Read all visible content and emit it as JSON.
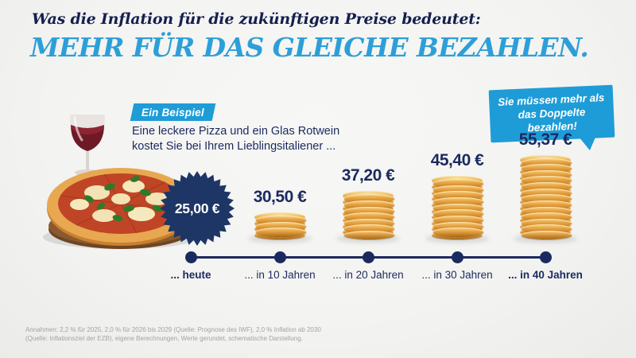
{
  "header": {
    "kicker": "Was die Inflation für die zukünftigen Preise bedeutet:",
    "title": "MEHR FÜR DAS GLEICHE BEZAHLEN."
  },
  "example": {
    "badge_label": "Ein Beispiel",
    "text_line1": "Eine leckere Pizza und ein Glas Rotwein",
    "text_line2": "kostet Sie bei Ihrem Lieblingsitaliener ..."
  },
  "callout": {
    "text_line1": "Sie müssen mehr als",
    "text_line2": "das Doppelte bezahlen!"
  },
  "chart_data": {
    "type": "bar",
    "subtype": "pictograph-coin-stacks",
    "title": "",
    "categories": [
      "... heute",
      "... in 10 Jahren",
      "... in 20 Jahren",
      "... in 30 Jahren",
      "... in 40 Jahren"
    ],
    "values": [
      25.0,
      30.5,
      37.2,
      45.4,
      55.37
    ],
    "value_labels": [
      "25,00 €",
      "30,50 €",
      "37,20 €",
      "45,40 €",
      "55,37 €"
    ],
    "unit": "€",
    "coin_counts": [
      0,
      7,
      14,
      19,
      26
    ],
    "grid": false,
    "legend": "none"
  },
  "footnote": {
    "line1": "Annahmen: 2,2 % für 2025, 2,0 % für 2026 bis 2029 (Quelle: Prognose des IWF), 2,0 % Inflation ab 2030",
    "line2": "(Quelle: Inflationsziel der EZB), eigene Berechnungen, Werte gerundet, schematische Darstellung."
  },
  "icons": {
    "pizza": "pizza-wine-illustration",
    "wine": "wine-glass-icon",
    "starburst": "starburst-price-badge"
  },
  "colors": {
    "navy": "#1b2a5e",
    "title_navy": "#141f4e",
    "accent_blue": "#2d9fd8",
    "badge_blue": "#1e9cd7",
    "starburst_navy": "#1d3665",
    "coin_gold": "#e6a344",
    "background": "#f4f4f2",
    "footnote_gray": "#a3a3a3"
  }
}
